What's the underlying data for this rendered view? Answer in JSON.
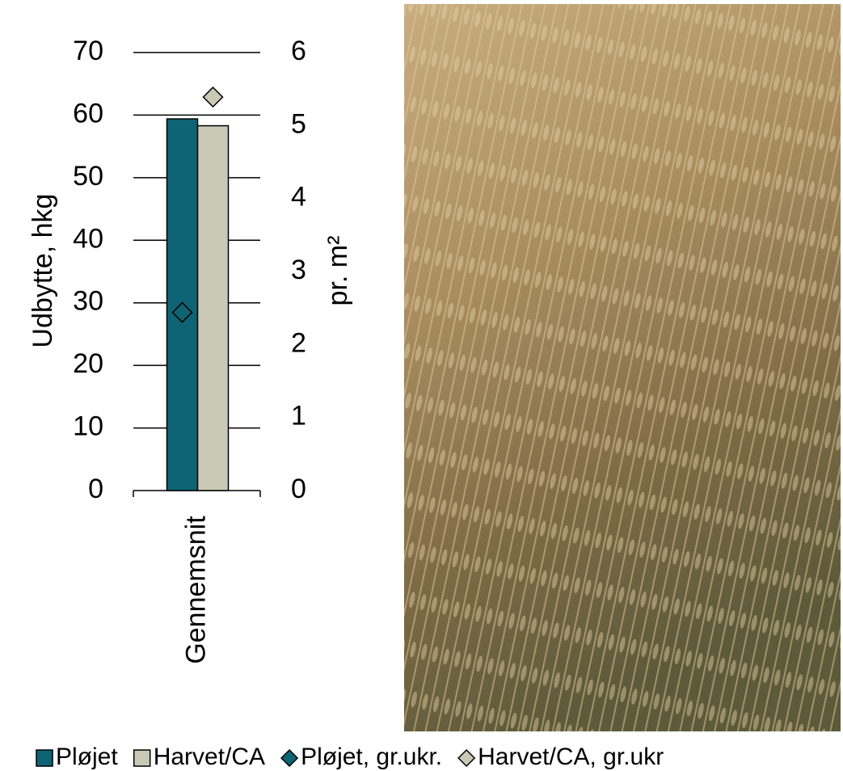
{
  "chart_data": {
    "type": "bar",
    "categories": [
      "Gennemsnit"
    ],
    "y_label": "Udbytte, hkg",
    "y2_label": "pr. m²",
    "ylim": [
      0,
      70
    ],
    "yticks": [
      0,
      10,
      20,
      30,
      40,
      50,
      60,
      70
    ],
    "y2lim": [
      0,
      6
    ],
    "y2ticks": [
      0,
      1,
      2,
      3,
      4,
      5,
      6
    ],
    "grid": true,
    "legend": "bottom",
    "series": [
      {
        "name": "Pløjet",
        "type": "bar",
        "color": "#0e6474",
        "values": [
          59.4
        ]
      },
      {
        "name": "Harvet/CA",
        "type": "bar",
        "color": "#c9c9b5",
        "values": [
          58.3
        ]
      },
      {
        "name": "Pløjet, gr.ukr.",
        "type": "scatter",
        "axis": "y2",
        "color": "#0e6474",
        "values": [
          2.44
        ]
      },
      {
        "name": "Harvet/CA, gr.ukr",
        "type": "scatter",
        "axis": "y2",
        "color": "#c9c9b5",
        "values": [
          5.39
        ]
      }
    ]
  }
}
